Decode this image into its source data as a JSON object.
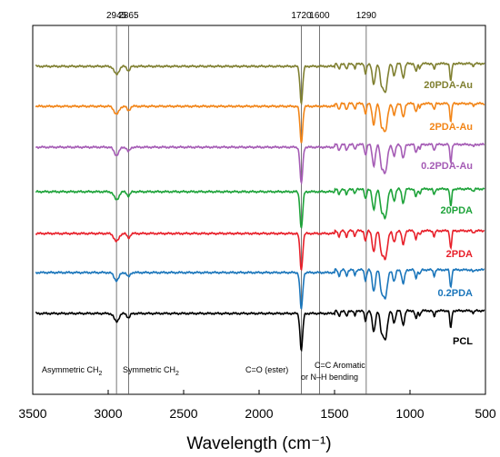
{
  "chart_data": {
    "type": "line",
    "xlabel": "Wavelength (cm⁻¹)",
    "ylabel": "",
    "xlim": [
      3500,
      500
    ],
    "x_reversed": true,
    "grid": false,
    "xticks": [
      3500,
      3000,
      2500,
      2000,
      1500,
      1000,
      500
    ],
    "reference_lines": [
      {
        "x": 2945,
        "label": "2945"
      },
      {
        "x": 2865,
        "label": "2865"
      },
      {
        "x": 1720,
        "label": "1720"
      },
      {
        "x": 1600,
        "label": "1600"
      },
      {
        "x": 1290,
        "label": "1290"
      }
    ],
    "annotations": [
      {
        "text": "Asymmetric CH",
        "sub": "2"
      },
      {
        "text": "Symmetric CH",
        "sub": "2"
      },
      {
        "text": "C=O (ester)",
        "sub": ""
      },
      {
        "text": "C=C Aromatic",
        "sub": ""
      },
      {
        "text": "or N–H bending",
        "sub": ""
      }
    ],
    "series": [
      {
        "name": "20PDA-Au",
        "color": "#808031",
        "offset": 6
      },
      {
        "name": "2PDA-Au",
        "color": "#f28518",
        "offset": 5
      },
      {
        "name": "0.2PDA-Au",
        "color": "#a55cb5",
        "offset": 4
      },
      {
        "name": "20PDA",
        "color": "#1ea33a",
        "offset": 3
      },
      {
        "name": "2PDA",
        "color": "#e8202a",
        "offset": 2
      },
      {
        "name": "0.2PDA",
        "color": "#1b76bb",
        "offset": 1
      },
      {
        "name": "PCL",
        "color": "#000000",
        "offset": 0
      }
    ]
  }
}
